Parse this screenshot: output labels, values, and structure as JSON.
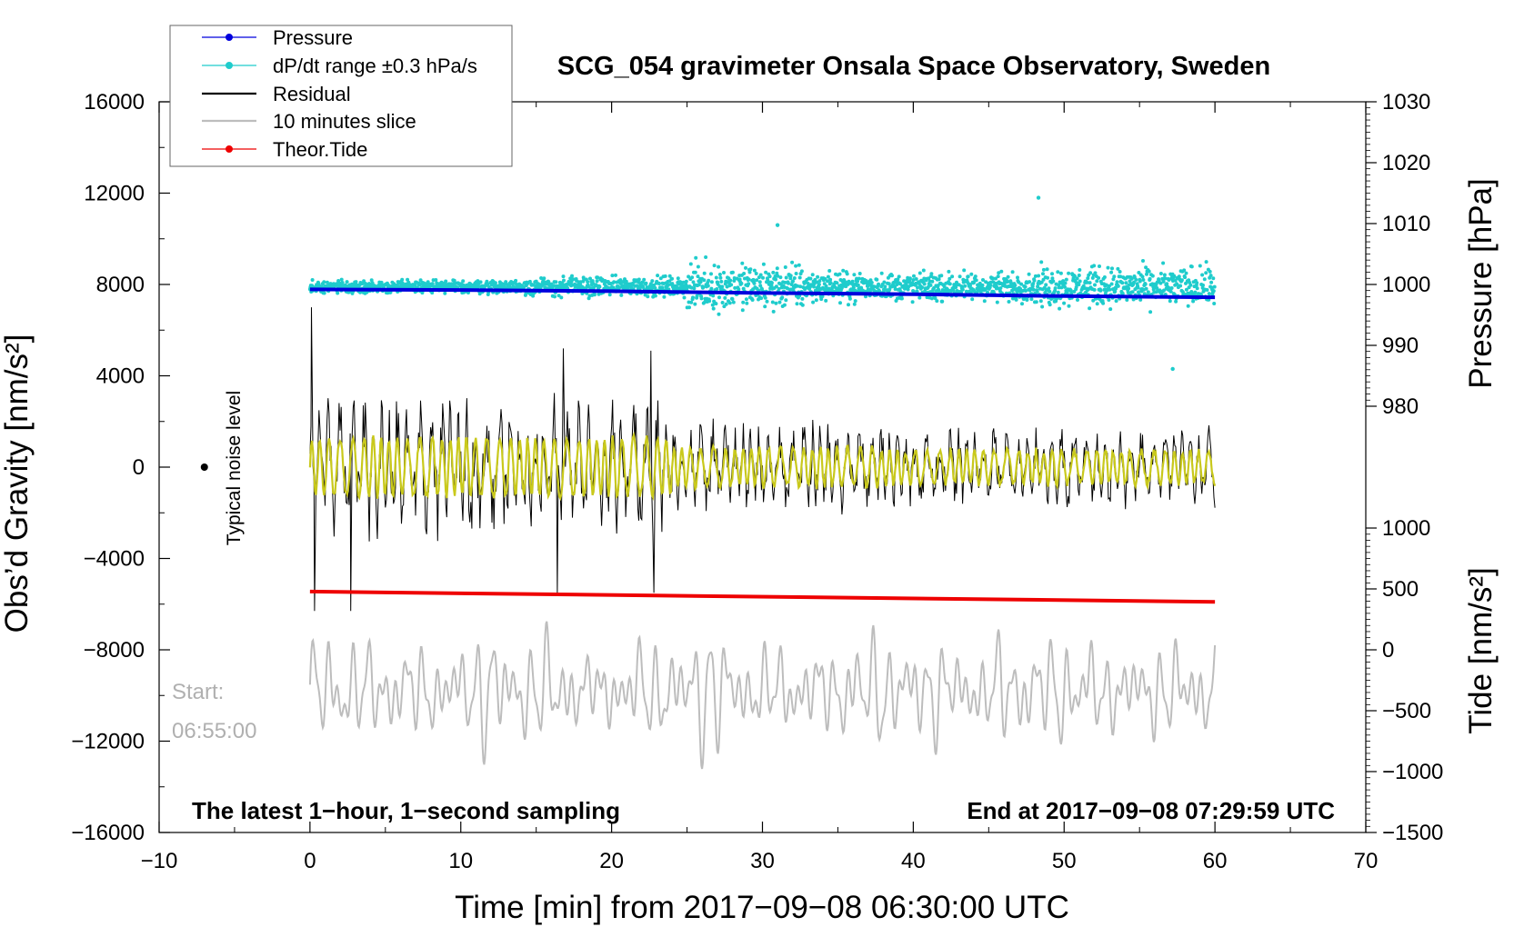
{
  "chart_data": {
    "type": "line",
    "title": "SCG_054 gravimeter Onsala Space Observatory, Sweden",
    "xlabel": "Time [min] from 2017−09−08 06:30:00 UTC",
    "ylabel_left": "Obs’d Gravity [nm/s²]",
    "ylabel_pressure": "Pressure [hPa]",
    "ylabel_tide": "Tide [nm/s²]",
    "xlim": [
      -10,
      70
    ],
    "ylim_left": [
      -16000,
      16000
    ],
    "x_ticks": [
      "−10",
      "0",
      "10",
      "20",
      "30",
      "40",
      "50",
      "60",
      "70"
    ],
    "y_ticks_left": [
      "16000",
      "12000",
      "8000",
      "4000",
      "0",
      "−4000",
      "−8000",
      "−12000",
      "−16000"
    ],
    "pressure_ticks": [
      "1030",
      "1020",
      "1010",
      "1000",
      "990",
      "980"
    ],
    "tide_ticks": [
      "1000",
      "500",
      "0",
      "−500",
      "−1000",
      "−1500"
    ],
    "pressure_axis": {
      "ticks": [
        1030,
        1020,
        1010,
        1000,
        990,
        980
      ],
      "gravity_at": [
        16000,
        13333,
        10667,
        8000,
        5333,
        2667
      ]
    },
    "tide_axis": {
      "ticks": [
        1000,
        500,
        0,
        -500,
        -1000,
        -1500
      ],
      "gravity_at": [
        -2667,
        -5333,
        -8000,
        -10667,
        -13333,
        -16000
      ]
    },
    "legend": {
      "position": "top-left",
      "entries": [
        {
          "label": "Pressure",
          "color": "#0000dd"
        },
        {
          "label": "dP/dt range ±0.3 hPa/s",
          "color": "#1fcccc"
        },
        {
          "label": "Residual",
          "color": "#000000"
        },
        {
          "label": "10 minutes slice",
          "color": "#bdbdbd"
        },
        {
          "label": "Theor.Tide",
          "color": "#ee0000"
        }
      ]
    },
    "series": [
      {
        "name": "Pressure",
        "color": "#0000dd",
        "unit": "hPa",
        "x": [
          0,
          10,
          20,
          30,
          40,
          50,
          60
        ],
        "values": [
          999.2,
          999.1,
          998.9,
          998.6,
          998.4,
          998.1,
          997.9
        ]
      },
      {
        "name": "dP/dt range ±0.3 hPa/s",
        "color": "#1fcccc",
        "unit": "nm/s² (plotted)",
        "center": 7900,
        "spread": [
          0,
          60
        ],
        "outliers": [
          {
            "x": 48.3,
            "y": 11800
          },
          {
            "x": 57.2,
            "y": 4300
          },
          {
            "x": 31,
            "y": 10600
          }
        ]
      },
      {
        "name": "Residual",
        "color": "#000000",
        "unit": "nm/s²",
        "range": [
          -6400,
          7000
        ],
        "spikes": [
          {
            "x": 0.1,
            "y": 7000
          },
          {
            "x": 0.3,
            "y": -6300
          },
          {
            "x": 2.7,
            "y": -6300
          },
          {
            "x": 16.4,
            "y": -5500
          },
          {
            "x": 16.8,
            "y": 5200
          },
          {
            "x": 22.8,
            "y": -5500
          },
          {
            "x": 22.6,
            "y": 5100
          }
        ]
      },
      {
        "name": "Filtered residual",
        "color": "#c9c91c",
        "unit": "nm/s²",
        "range": [
          -3000,
          3400
        ]
      },
      {
        "name": "Theor.Tide",
        "color": "#ee0000",
        "unit": "nm/s²",
        "x": [
          0,
          60
        ],
        "values": [
          -5450,
          -5900
        ]
      },
      {
        "name": "10 minutes slice",
        "color": "#bdbdbd",
        "unit": "nm/s²",
        "range": [
          -13800,
          -5900
        ]
      }
    ],
    "noise_marker": {
      "x": -7,
      "y": 0,
      "label": "Typical noise level"
    },
    "annotations": {
      "start_label": "Start:",
      "start_time": "06:55:00",
      "bottom_left": "The latest 1−hour, 1−second sampling",
      "bottom_right": "End at 2017−09−08 07:29:59 UTC"
    }
  },
  "colors": {
    "pressure": "#0000dd",
    "dpdt": "#1fcccc",
    "residual": "#000000",
    "filtered": "#c9c91c",
    "tide": "#ee0000",
    "slice": "#bdbdbd"
  }
}
